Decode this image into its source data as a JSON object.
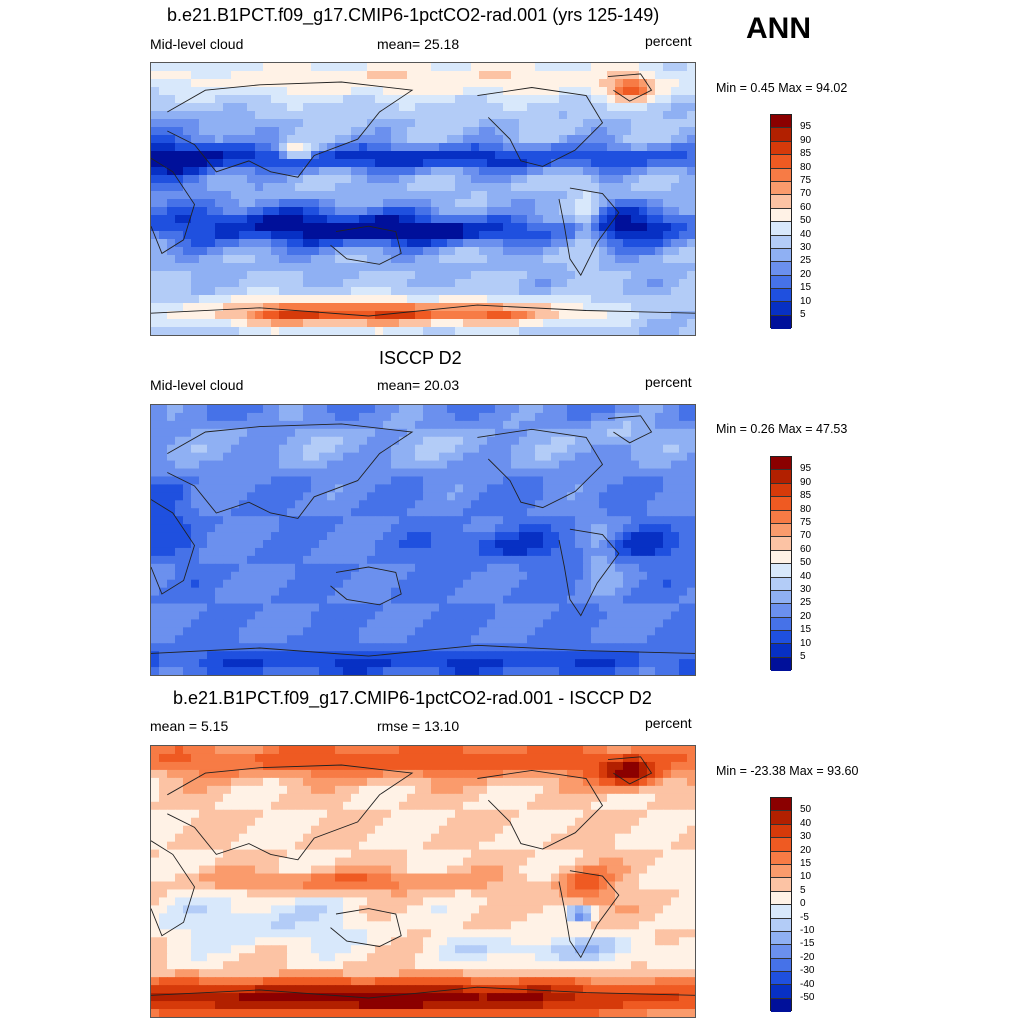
{
  "season": "ANN",
  "panels": [
    {
      "id": "model",
      "title": "b.e21.B1PCT.f09_g17.CMIP6-1pctCO2-rad.001 (yrs 125-149)",
      "left_label": "Mid-level cloud",
      "center_label": "mean=  25.18",
      "right_label": "percent",
      "minmax": "Min =   0.45 Max =  94.02",
      "field": "model"
    },
    {
      "id": "obs",
      "title": "ISCCP D2",
      "left_label": "Mid-level cloud",
      "center_label": "mean=  20.03",
      "right_label": "percent",
      "minmax": "Min =   0.26 Max =  47.53",
      "field": "obs"
    },
    {
      "id": "diff",
      "title": "b.e21.B1PCT.f09_g17.CMIP6-1pctCO2-rad.001 - ISCCP D2",
      "left_label": "mean =   5.15",
      "center_label": "rmse =  13.10",
      "right_label": "percent",
      "minmax": "Min = -23.38 Max =  93.60",
      "field": "diff"
    }
  ],
  "colorbars": {
    "absolute": {
      "labels": [
        "95",
        "90",
        "85",
        "80",
        "75",
        "70",
        "60",
        "50",
        "40",
        "30",
        "25",
        "20",
        "15",
        "10",
        "5"
      ],
      "colors": [
        "#8b0000",
        "#b22000",
        "#d63a0a",
        "#ef5a22",
        "#f77b45",
        "#fa9b6c",
        "#fcc3a4",
        "#fff2e6",
        "#d8e8fb",
        "#b3ccf7",
        "#8fb0f3",
        "#6b90ee",
        "#4672e8",
        "#1f50df",
        "#0730c4",
        "#00109a"
      ]
    },
    "difference": {
      "labels": [
        "50",
        "40",
        "30",
        "20",
        "15",
        "10",
        "5",
        "0",
        "-5",
        "-10",
        "-15",
        "-20",
        "-30",
        "-40",
        "-50"
      ],
      "colors": [
        "#8b0000",
        "#b22000",
        "#d63a0a",
        "#ef5a22",
        "#f77b45",
        "#fa9b6c",
        "#fcc3a4",
        "#fff2e6",
        "#d8e8fb",
        "#b3ccf7",
        "#8fb0f3",
        "#6b90ee",
        "#4672e8",
        "#1f50df",
        "#0730c4",
        "#00109a"
      ]
    }
  }
}
